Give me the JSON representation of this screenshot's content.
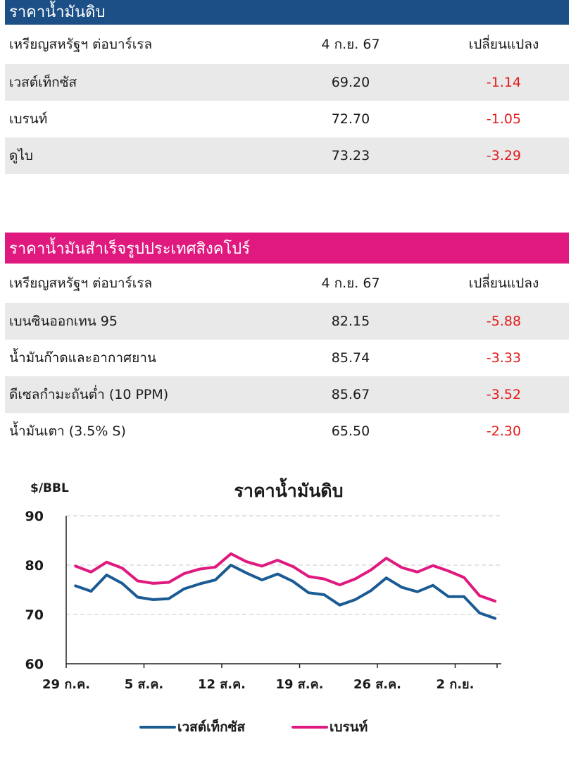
{
  "crude_table": {
    "title": "ราคาน้ำมันดิบ",
    "header": {
      "name": "เหรียญสหรัฐฯ ต่อบาร์เรล",
      "date": "4 ก.ย. 67",
      "change": "เปลี่ยนแปลง"
    },
    "rows": [
      {
        "name": "เวสต์เท็กซัส",
        "price": "69.20",
        "change": "-1.14"
      },
      {
        "name": "เบรนท์",
        "price": "72.70",
        "change": "-1.05"
      },
      {
        "name": "ดูไบ",
        "price": "73.23",
        "change": "-3.29"
      }
    ]
  },
  "singapore_table": {
    "title": "ราคาน้ำมันสำเร็จรูปประเทศสิงคโปร์",
    "header": {
      "name": "เหรียญสหรัฐฯ ต่อบาร์เรล",
      "date": "4 ก.ย. 67",
      "change": "เปลี่ยนแปลง"
    },
    "rows": [
      {
        "name": "เบนซินออกเทน 95",
        "price": "82.15",
        "change": "-5.88"
      },
      {
        "name": "น้ำมันก๊าดและอากาศยาน",
        "price": "85.74",
        "change": "-3.33"
      },
      {
        "name": "ดีเซลกำมะถันต่ำ (10 PPM)",
        "price": "85.67",
        "change": "-3.52"
      },
      {
        "name": "น้ำมันเตา (3.5% S)",
        "price": "65.50",
        "change": "-2.30"
      }
    ]
  },
  "colors": {
    "wti": "#1b5b94",
    "brent": "#e0197f",
    "negative": "#e31b1b",
    "crude_header": "#1b4f86",
    "spore_header": "#e0197f"
  },
  "chart_data": {
    "type": "line",
    "title": "ราคาน้ำมันดิบ",
    "ylabel": "$/BBL",
    "ylim": [
      60,
      90
    ],
    "yticks": [
      60,
      70,
      80,
      90
    ],
    "grid": true,
    "legend_position": "bottom",
    "x": [
      "29 ก.ค.",
      "30 ก.ค.",
      "31 ก.ค.",
      "1 ส.ค.",
      "2 ส.ค.",
      "5 ส.ค.",
      "6 ส.ค.",
      "7 ส.ค.",
      "8 ส.ค.",
      "9 ส.ค.",
      "12 ส.ค.",
      "13 ส.ค.",
      "14 ส.ค.",
      "15 ส.ค.",
      "16 ส.ค.",
      "19 ส.ค.",
      "20 ส.ค.",
      "21 ส.ค.",
      "22 ส.ค.",
      "23 ส.ค.",
      "26 ส.ค.",
      "27 ส.ค.",
      "28 ส.ค.",
      "29 ส.ค.",
      "30 ส.ค.",
      "2 ก.ย.",
      "3 ก.ย.",
      "4 ก.ย."
    ],
    "xticks": [
      "29 ก.ค.",
      "5 ส.ค.",
      "12 ส.ค.",
      "19 ส.ค.",
      "26 ส.ค.",
      "2 ก.ย."
    ],
    "series": [
      {
        "name": "เวสต์เท็กซัส",
        "values": [
          75.8,
          74.7,
          78.0,
          76.3,
          73.5,
          73.0,
          73.2,
          75.2,
          76.2,
          77.0,
          80.0,
          78.4,
          77.0,
          78.2,
          76.7,
          74.4,
          74.0,
          71.9,
          73.0,
          74.8,
          77.4,
          75.5,
          74.6,
          75.9,
          73.6,
          73.6,
          70.3,
          69.2
        ]
      },
      {
        "name": "เบรนท์",
        "values": [
          79.8,
          78.6,
          80.6,
          79.4,
          76.8,
          76.3,
          76.5,
          78.3,
          79.2,
          79.6,
          82.3,
          80.7,
          79.8,
          81.0,
          79.7,
          77.7,
          77.2,
          76.0,
          77.2,
          79.0,
          81.4,
          79.5,
          78.6,
          79.9,
          78.8,
          77.5,
          73.8,
          72.7
        ]
      }
    ]
  }
}
